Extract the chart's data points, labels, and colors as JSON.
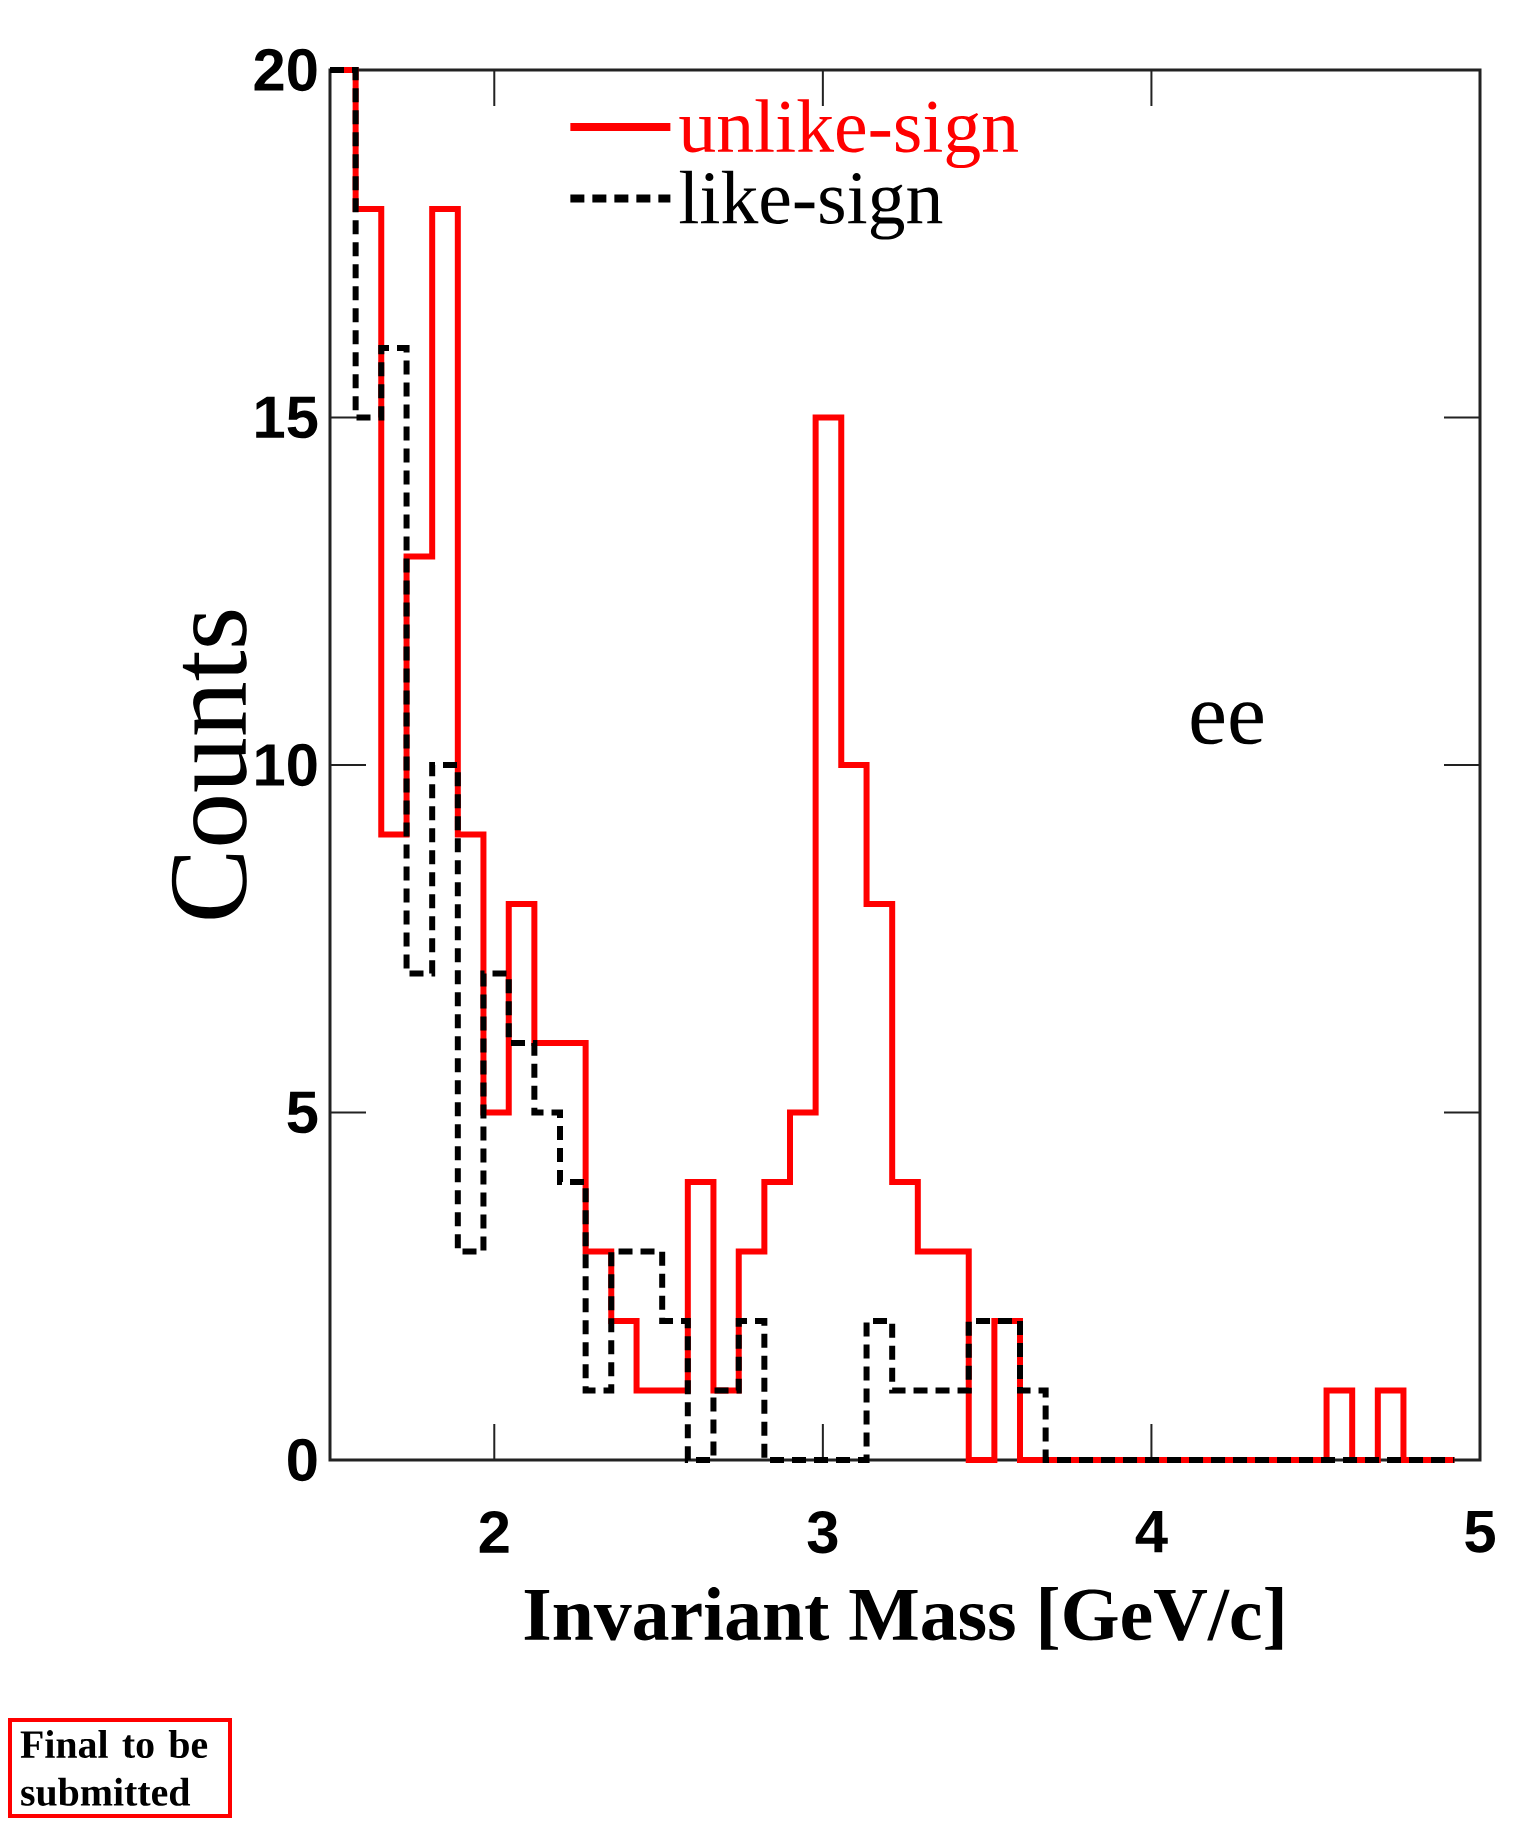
{
  "chart_data": {
    "type": "step",
    "xlabel": "Invariant Mass [GeV/c]",
    "ylabel": "Counts",
    "x": [
      1.5,
      1.578,
      1.656,
      1.733,
      1.811,
      1.889,
      1.967,
      2.044,
      2.122,
      2.2,
      2.278,
      2.356,
      2.433,
      2.511,
      2.589,
      2.667,
      2.744,
      2.822,
      2.9,
      2.978,
      3.056,
      3.133,
      3.211,
      3.289,
      3.367,
      3.444,
      3.522,
      3.6,
      3.678,
      3.756,
      3.833,
      3.911,
      3.989,
      4.067,
      4.144,
      4.222,
      4.3,
      4.378,
      4.456,
      4.533,
      4.611,
      4.689,
      4.767,
      4.844,
      4.922
    ],
    "series": [
      {
        "name": "unlike-sign",
        "color": "#ff0000",
        "line_style": "solid",
        "values": [
          20,
          18,
          9,
          13,
          18,
          9,
          5,
          8,
          6,
          6,
          3,
          2,
          1,
          1,
          4,
          1,
          3,
          4,
          5,
          15,
          10,
          8,
          4,
          3,
          3,
          0,
          2,
          0,
          0,
          0,
          0,
          0,
          0,
          0,
          0,
          0,
          0,
          0,
          0,
          1,
          0,
          1,
          0,
          0,
          0
        ]
      },
      {
        "name": "like-sign",
        "color": "#000000",
        "line_style": "dashed",
        "values": [
          20,
          15,
          16,
          7,
          10,
          3,
          7,
          6,
          5,
          4,
          1,
          3,
          3,
          2,
          0,
          1,
          2,
          0,
          0,
          0,
          0,
          2,
          1,
          1,
          1,
          2,
          2,
          1,
          0,
          0,
          0,
          0,
          0,
          0,
          0,
          0,
          0,
          0,
          0,
          0,
          0,
          0,
          0,
          0,
          0
        ]
      }
    ],
    "xlim": [
      1.5,
      5
    ],
    "ylim": [
      0,
      20
    ],
    "xticks": [
      2,
      3,
      4,
      5
    ],
    "yticks": [
      0,
      5,
      10,
      15,
      20
    ],
    "grid": false,
    "legend": "top",
    "annotations": [
      "ee",
      "Final to be submitted"
    ]
  }
}
